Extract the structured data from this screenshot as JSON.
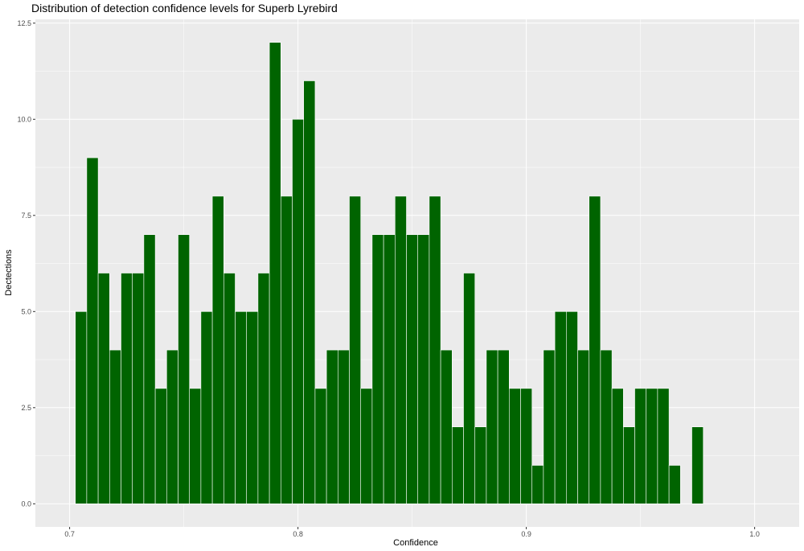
{
  "chart_data": {
    "type": "bar",
    "title": "Distribution of detection confidence levels for Superb Lyrebird",
    "xlabel": "Confidence",
    "ylabel": "Dectections",
    "xlim": [
      0.685,
      1.0195
    ],
    "ylim": [
      -0.6,
      12.6
    ],
    "x_ticks": [
      0.7,
      0.8,
      0.9,
      1.0
    ],
    "x_tick_labels": [
      "0.7",
      "0.8",
      "0.9",
      "1.0"
    ],
    "y_ticks": [
      0,
      2.5,
      5,
      7.5,
      10,
      12.5
    ],
    "y_tick_labels": [
      "0.0",
      "2.5",
      "5.0",
      "7.5",
      "10.0",
      "12.5"
    ],
    "bin_start": 0.7025,
    "bin_width": 0.005,
    "values": [
      5,
      9,
      6,
      4,
      6,
      6,
      7,
      3,
      4,
      7,
      3,
      5,
      8,
      6,
      5,
      5,
      6,
      12,
      8,
      10,
      11,
      3,
      4,
      4,
      8,
      3,
      7,
      7,
      8,
      7,
      7,
      8,
      4,
      2,
      6,
      2,
      4,
      4,
      3,
      3,
      1,
      4,
      5,
      5,
      4,
      8,
      4,
      3,
      2,
      3,
      3,
      3,
      1,
      0,
      2
    ],
    "grid": true,
    "colors": {
      "bar_fill": "#006400",
      "bar_stroke": "#ffffff",
      "panel_bg": "#ebebeb",
      "grid_major": "#ffffff"
    }
  }
}
